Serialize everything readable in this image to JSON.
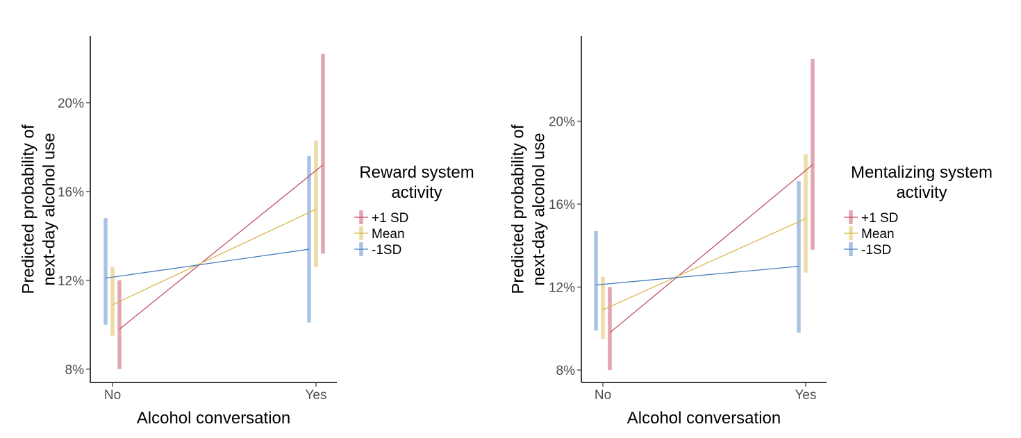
{
  "chart_data": [
    {
      "type": "line",
      "title": "",
      "xlabel": "Alcohol conversation",
      "ylabel_lines": [
        "Predicted probability of",
        "next-day alcohol use"
      ],
      "categories": [
        "No",
        "Yes"
      ],
      "yticks": [
        8,
        12,
        16,
        20
      ],
      "ytick_labels": [
        "8%",
        "12%",
        "16%",
        "20%"
      ],
      "ylim": [
        7.4,
        23.0
      ],
      "grid": false,
      "legend_position": "right",
      "legend_title_lines": [
        "Reward system",
        "activity"
      ],
      "series": [
        {
          "name": "+1 SD",
          "color": "#c44e64",
          "band_color": "#e2a5b1",
          "values": [
            9.8,
            17.2
          ],
          "lower": [
            8.0,
            13.2
          ],
          "upper": [
            12.0,
            22.2
          ]
        },
        {
          "name": "Mean",
          "color": "#d9b84e",
          "band_color": "#ecdca5",
          "values": [
            10.9,
            15.2
          ],
          "lower": [
            9.5,
            12.6
          ],
          "upper": [
            12.6,
            18.3
          ]
        },
        {
          "name": "-1SD",
          "color": "#4a7ebb",
          "band_color": "#aac3e3",
          "values": [
            12.1,
            13.4
          ],
          "lower": [
            10.0,
            10.1
          ],
          "upper": [
            14.8,
            17.6
          ]
        }
      ]
    },
    {
      "type": "line",
      "title": "",
      "xlabel": "Alcohol conversation",
      "ylabel_lines": [
        "Predicted probability of",
        "next-day alcohol use"
      ],
      "categories": [
        "No",
        "Yes"
      ],
      "yticks": [
        8,
        12,
        16,
        20
      ],
      "ytick_labels": [
        "8%",
        "12%",
        "16%",
        "20%"
      ],
      "ylim": [
        7.4,
        24.1
      ],
      "grid": false,
      "legend_position": "right",
      "legend_title_lines": [
        "Mentalizing system",
        "activity"
      ],
      "series": [
        {
          "name": "+1 SD",
          "color": "#c44e64",
          "band_color": "#e2a5b1",
          "values": [
            9.8,
            17.9
          ],
          "lower": [
            8.0,
            13.8
          ],
          "upper": [
            12.0,
            23.0
          ]
        },
        {
          "name": "Mean",
          "color": "#d9b84e",
          "band_color": "#ecdca5",
          "values": [
            10.9,
            15.3
          ],
          "lower": [
            9.5,
            12.7
          ],
          "upper": [
            12.5,
            18.4
          ]
        },
        {
          "name": "-1SD",
          "color": "#4a7ebb",
          "band_color": "#aac3e3",
          "values": [
            12.1,
            13.0
          ],
          "lower": [
            9.9,
            9.8
          ],
          "upper": [
            14.7,
            17.1
          ]
        }
      ]
    }
  ]
}
